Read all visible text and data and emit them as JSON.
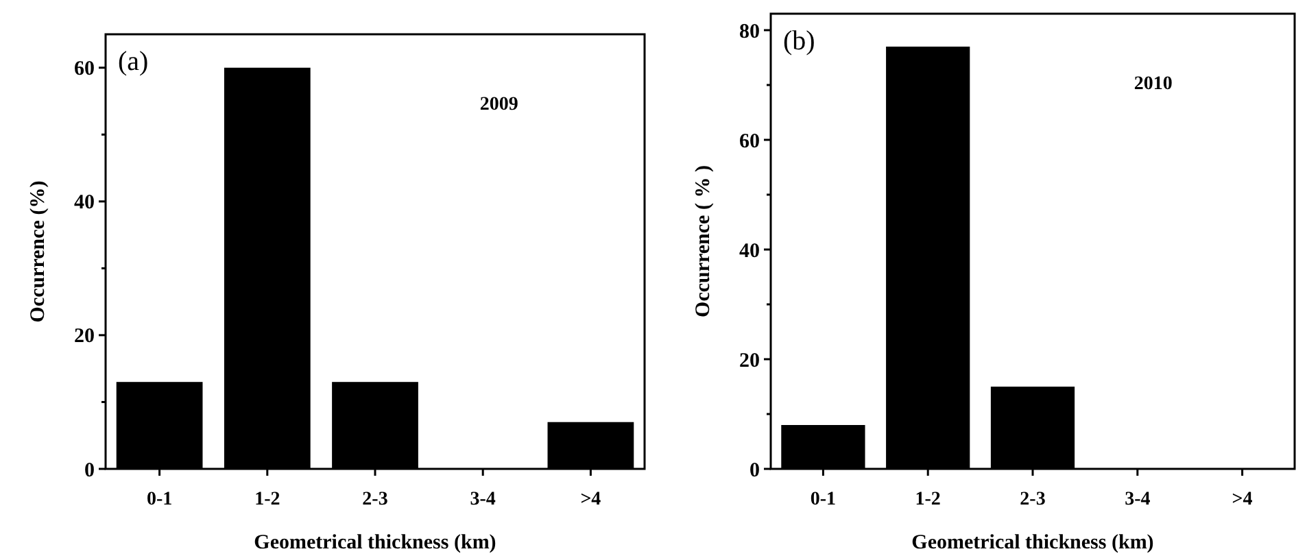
{
  "chart_data": [
    {
      "type": "bar",
      "annotations": [
        "(a)",
        "2009"
      ],
      "xlabel": "Geometrical thickness (km)",
      "ylabel": "Occurrence (%)",
      "categories": [
        "0-1",
        "1-2",
        "2-3",
        "3-4",
        ">4"
      ],
      "values": [
        13,
        60,
        13,
        0,
        7
      ],
      "color": "#000000",
      "ylim": [
        0,
        65
      ],
      "yticks": [
        0,
        {
          "value": 10,
          "label": null
        },
        20,
        {
          "value": 30,
          "label": null
        },
        40,
        {
          "value": 50,
          "label": null
        },
        60
      ],
      "grid": false
    },
    {
      "type": "bar",
      "annotations": [
        "(b)",
        "2010"
      ],
      "xlabel": "Geometrical thickness (km)",
      "ylabel": "Occurrence ( % )",
      "categories": [
        "0-1",
        "1-2",
        "2-3",
        "3-4",
        ">4"
      ],
      "values": [
        8,
        77,
        15,
        0,
        0
      ],
      "color": "#000000",
      "ylim": [
        0,
        83
      ],
      "yticks": [
        0,
        {
          "value": 10,
          "label": null
        },
        20,
        {
          "value": 30,
          "label": null
        },
        40,
        {
          "value": 50,
          "label": null
        },
        60,
        {
          "value": 70,
          "label": null
        },
        80
      ],
      "grid": false
    }
  ]
}
